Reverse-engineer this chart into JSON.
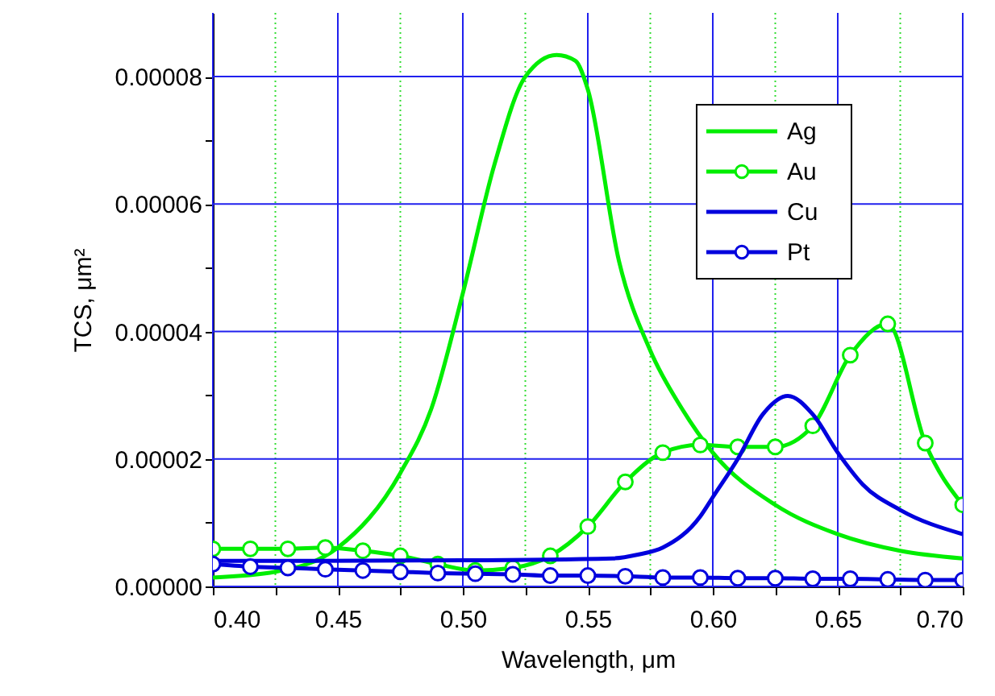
{
  "chart_data": {
    "type": "line",
    "xlabel": "Wavelength, μm",
    "ylabel": "TCS, μm²",
    "xlim": [
      0.4,
      0.7
    ],
    "ylim": [
      0,
      9e-05
    ],
    "xticks": [
      {
        "value": 0.4,
        "label": "0.40"
      },
      {
        "value": 0.425,
        "label": null
      },
      {
        "value": 0.45,
        "label": "0.45"
      },
      {
        "value": 0.475,
        "label": null
      },
      {
        "value": 0.5,
        "label": "0.50"
      },
      {
        "value": 0.525,
        "label": null
      },
      {
        "value": 0.55,
        "label": "0.55"
      },
      {
        "value": 0.575,
        "label": null
      },
      {
        "value": 0.6,
        "label": "0.60"
      },
      {
        "value": 0.625,
        "label": null
      },
      {
        "value": 0.65,
        "label": "0.65"
      },
      {
        "value": 0.675,
        "label": null
      },
      {
        "value": 0.7,
        "label": "0.70"
      }
    ],
    "yticks": [
      {
        "value": 0,
        "label": "0.00000"
      },
      {
        "value": 1e-05,
        "label": null
      },
      {
        "value": 2e-05,
        "label": "0.00002"
      },
      {
        "value": 3e-05,
        "label": null
      },
      {
        "value": 4e-05,
        "label": "0.00004"
      },
      {
        "value": 5e-05,
        "label": null
      },
      {
        "value": 6e-05,
        "label": "0.00006"
      },
      {
        "value": 7e-05,
        "label": null
      },
      {
        "value": 8e-05,
        "label": "0.00008"
      }
    ],
    "grid": true,
    "legend": "top right",
    "series": [
      {
        "name": "Ag",
        "color": "#00ee00",
        "marker": "none",
        "x": [
          0.4,
          0.425,
          0.45,
          0.475,
          0.4875,
          0.5,
          0.5125,
          0.525,
          0.5375,
          0.545,
          0.55,
          0.5625,
          0.575,
          0.5875,
          0.6,
          0.625,
          0.65,
          0.675,
          0.7
        ],
        "values": [
          1.4e-06,
          2.3e-06,
          6.1e-06,
          1.78e-05,
          2.8e-05,
          4.6e-05,
          6.6e-05,
          8e-05,
          8.34e-05,
          8.25e-05,
          7.8e-05,
          5.1e-05,
          3.7e-05,
          2.8e-05,
          2.1e-05,
          1.28e-05,
          8.2e-06,
          5.6e-06,
          4.4e-06
        ]
      },
      {
        "name": "Au",
        "color": "#00ee00",
        "marker": "circle",
        "x": [
          0.4,
          0.415,
          0.43,
          0.445,
          0.46,
          0.475,
          0.49,
          0.505,
          0.52,
          0.535,
          0.55,
          0.565,
          0.58,
          0.595,
          0.61,
          0.625,
          0.64,
          0.655,
          0.67,
          0.685,
          0.7
        ],
        "values": [
          5.9e-06,
          5.9e-06,
          5.9e-06,
          6.1e-06,
          5.6e-06,
          4.8e-06,
          3.5e-06,
          2.5e-06,
          2.9e-06,
          4.8e-06,
          9.4e-06,
          1.64e-05,
          2.1e-05,
          2.22e-05,
          2.19e-05,
          2.19e-05,
          2.52e-05,
          3.63e-05,
          4.12e-05,
          2.25e-05,
          1.28e-05
        ]
      },
      {
        "name": "Cu",
        "color": "#0000dd",
        "marker": "none",
        "x": [
          0.4,
          0.5,
          0.56,
          0.57,
          0.58,
          0.595,
          0.6,
          0.61,
          0.62,
          0.63,
          0.64,
          0.65,
          0.66,
          0.675,
          0.7
        ],
        "values": [
          4e-06,
          4.1e-06,
          4.4e-06,
          5e-06,
          6.1e-06,
          1.1e-05,
          1.4e-05,
          2e-05,
          2.7e-05,
          2.99e-05,
          2.7e-05,
          2.1e-05,
          1.6e-05,
          1.2e-05,
          8.2e-06
        ]
      },
      {
        "name": "Pt",
        "color": "#0000dd",
        "marker": "circle",
        "x": [
          0.4,
          0.415,
          0.43,
          0.445,
          0.46,
          0.475,
          0.49,
          0.505,
          0.52,
          0.535,
          0.55,
          0.565,
          0.58,
          0.595,
          0.61,
          0.625,
          0.64,
          0.655,
          0.67,
          0.685,
          0.7
        ],
        "values": [
          3.5e-06,
          3.1e-06,
          2.9e-06,
          2.7e-06,
          2.5e-06,
          2.3e-06,
          2.1e-06,
          2e-06,
          1.9e-06,
          1.7e-06,
          1.7e-06,
          1.6e-06,
          1.4e-06,
          1.4e-06,
          1.3e-06,
          1.3e-06,
          1.2e-06,
          1.2e-06,
          1.1e-06,
          1e-06,
          1e-06
        ]
      }
    ]
  }
}
